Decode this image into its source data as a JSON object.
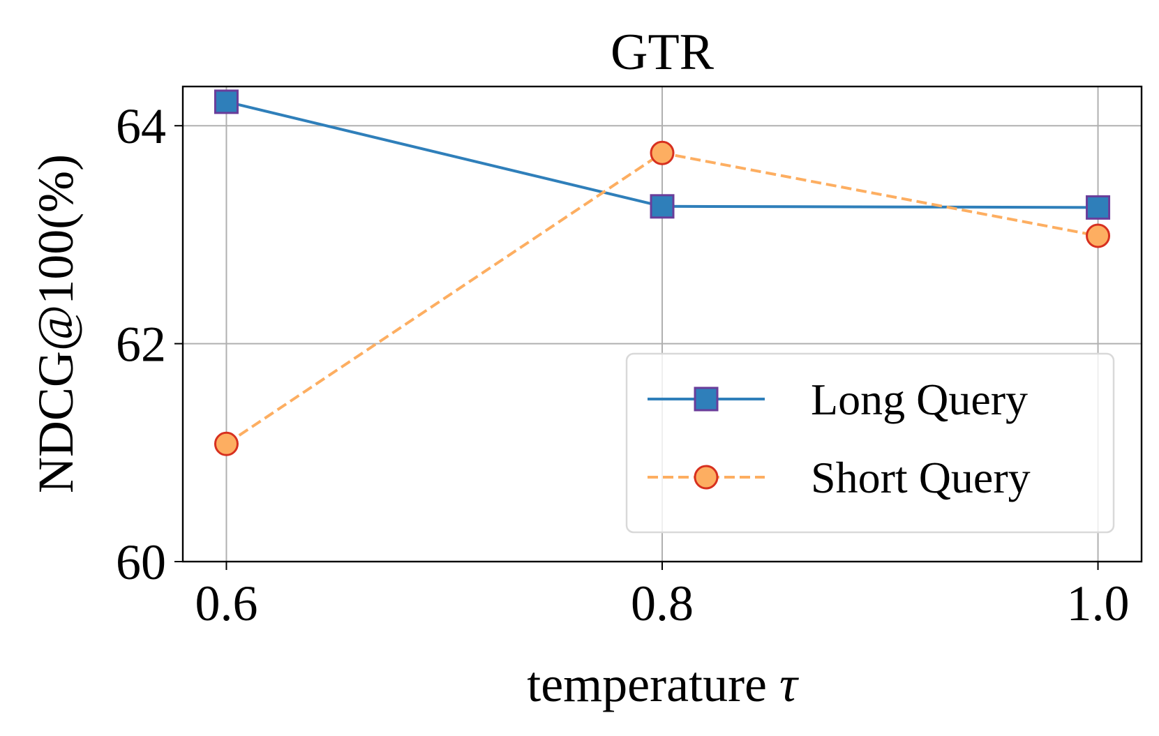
{
  "chart_data": {
    "type": "line",
    "title": "GTR",
    "xlabel": "temperature",
    "xlabel_symbol": "τ",
    "ylabel": "NDCG@100(%)",
    "x": [
      0.6,
      0.8,
      1.0
    ],
    "x_tick_labels": [
      "0.6",
      "0.8",
      "1.0"
    ],
    "y_ticks": [
      60,
      62,
      64
    ],
    "y_tick_labels": [
      "60",
      "62",
      "64"
    ],
    "xlim": [
      0.58,
      1.02
    ],
    "ylim": [
      60,
      64.36
    ],
    "grid": true,
    "legend_position": "lower-right",
    "series": [
      {
        "name": "Long Query",
        "values": [
          64.22,
          63.26,
          63.25
        ],
        "color": "#2f7fba",
        "marker": "square",
        "marker_face": "#2f7fba",
        "marker_edge": "#6a3d9a",
        "line_style": "solid"
      },
      {
        "name": "Short Query",
        "values": [
          61.08,
          63.75,
          62.99
        ],
        "color": "#fdae61",
        "marker": "circle",
        "marker_face": "#fdae61",
        "marker_edge": "#d7301f",
        "line_style": "dashed"
      }
    ]
  }
}
